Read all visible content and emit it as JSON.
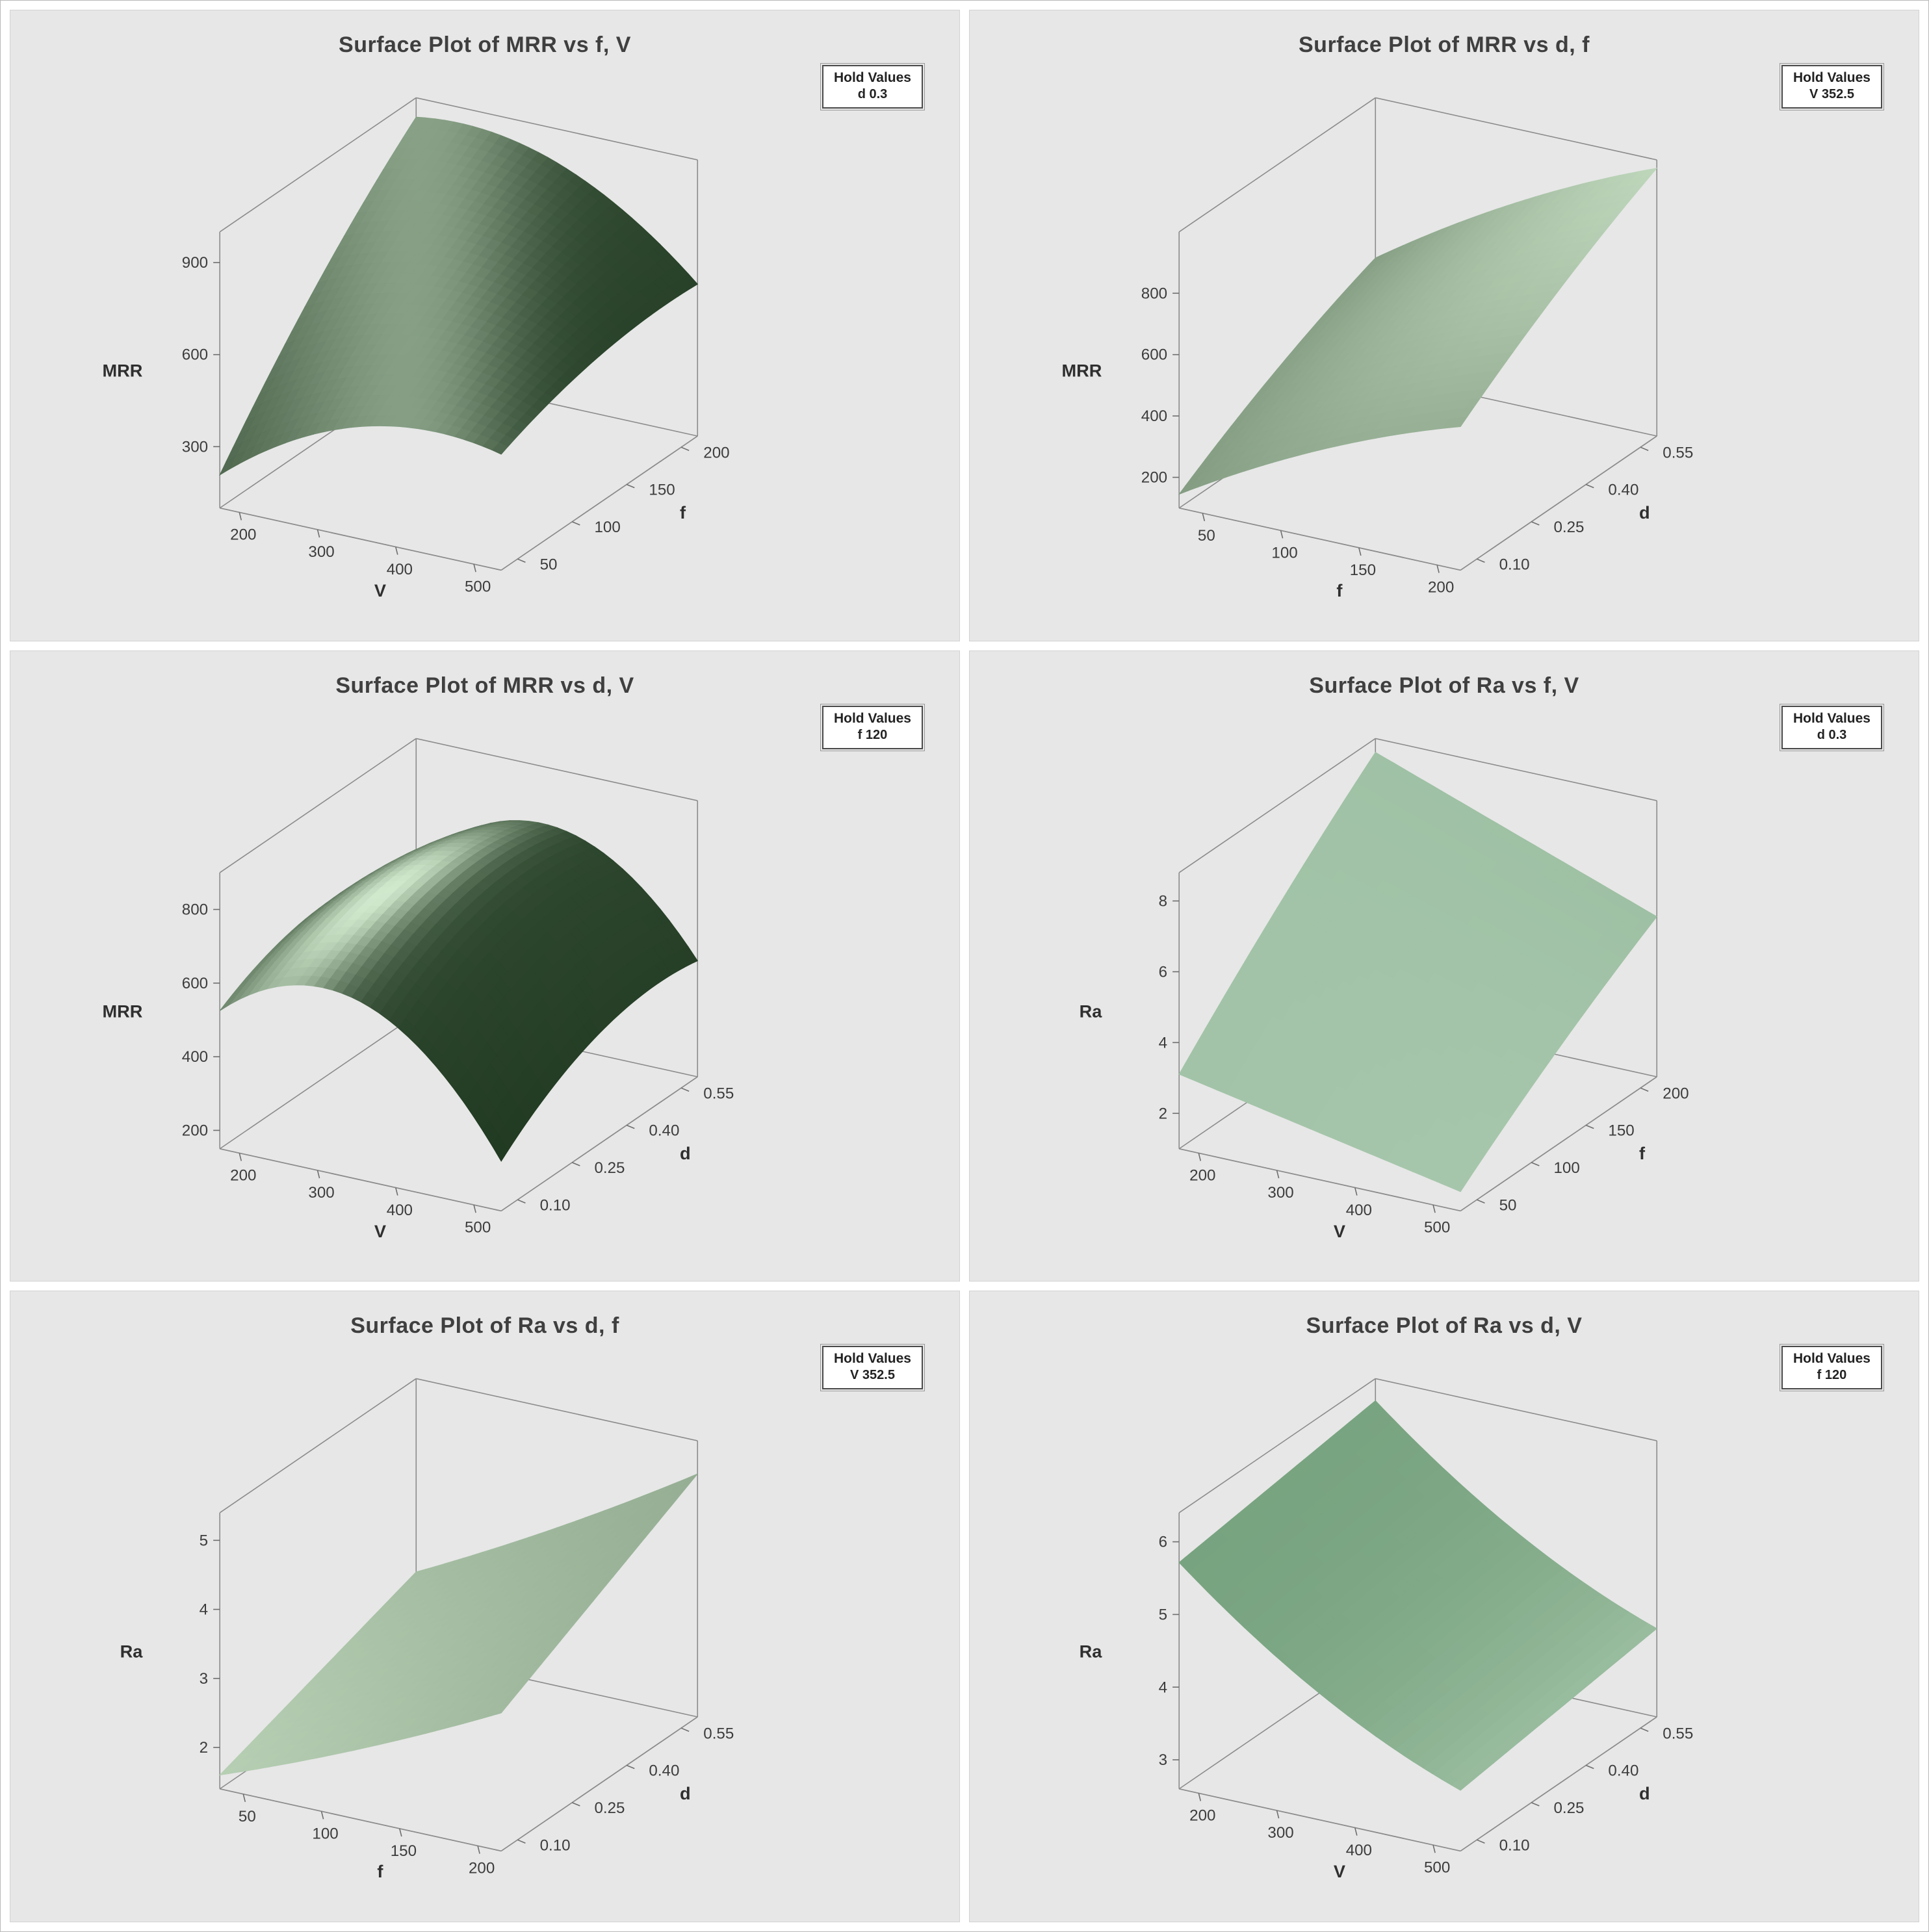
{
  "figure": {
    "background": "#ffffff",
    "panel_background": "#e7e7e7"
  },
  "palettes": {
    "dark": {
      "lo": "#112a12",
      "hi": "#d9f2d6"
    },
    "light": {
      "lo": "#2e6b3a",
      "hi": "#e9f9ea"
    }
  },
  "chart_data": [
    {
      "type": "surface",
      "title": "Surface Plot of MRR vs f, V",
      "hold_label": "Hold Values",
      "hold_value": "d 0.3",
      "x": {
        "label": "V",
        "ticks": [
          200,
          300,
          400,
          500
        ],
        "tick_labels": [
          "200",
          "300",
          "400",
          "500"
        ],
        "range": [
          175,
          535
        ]
      },
      "y": {
        "label": "f",
        "ticks": [
          50,
          100,
          150,
          200
        ],
        "tick_labels": [
          "50",
          "100",
          "150",
          "200"
        ],
        "range": [
          35,
          215
        ]
      },
      "z": {
        "label": "MRR",
        "ticks": [
          300,
          600,
          900
        ],
        "tick_labels": [
          "300",
          "600",
          "900"
        ],
        "range": [
          100,
          1000
        ]
      },
      "palette": "dark",
      "surface_coeffs": {
        "a": 0.12,
        "b": 0.85,
        "c": 1.0,
        "d": -0.55,
        "e": -0.19,
        "f": -0.68
      }
    },
    {
      "type": "surface",
      "title": "Surface Plot of MRR vs d, f",
      "hold_label": "Hold Values",
      "hold_value": "V 352.5",
      "x": {
        "label": "f",
        "ticks": [
          50,
          100,
          150,
          200
        ],
        "tick_labels": [
          "50",
          "100",
          "150",
          "200"
        ],
        "range": [
          35,
          215
        ]
      },
      "y": {
        "label": "d",
        "ticks": [
          0.1,
          0.25,
          0.4,
          0.55
        ],
        "tick_labels": [
          "0.10",
          "0.25",
          "0.40",
          "0.55"
        ],
        "range": [
          0.055,
          0.595
        ]
      },
      "z": {
        "label": "MRR",
        "ticks": [
          200,
          400,
          600,
          800
        ],
        "tick_labels": [
          "200",
          "400",
          "600",
          "800"
        ],
        "range": [
          100,
          1000
        ]
      },
      "palette": "dark",
      "surface_coeffs": {
        "a": 0.05,
        "b": 0.62,
        "c": 0.47,
        "d": -0.15,
        "e": -0.1,
        "f": 0.08
      }
    },
    {
      "type": "surface",
      "title": "Surface Plot of MRR vs d, V",
      "hold_label": "Hold Values",
      "hold_value": "f 120",
      "x": {
        "label": "V",
        "ticks": [
          200,
          300,
          400,
          500
        ],
        "tick_labels": [
          "200",
          "300",
          "400",
          "500"
        ],
        "range": [
          175,
          535
        ]
      },
      "y": {
        "label": "d",
        "ticks": [
          0.1,
          0.25,
          0.4,
          0.55
        ],
        "tick_labels": [
          "0.10",
          "0.25",
          "0.40",
          "0.55"
        ],
        "range": [
          0.055,
          0.595
        ]
      },
      "z": {
        "label": "MRR",
        "ticks": [
          200,
          400,
          600,
          800
        ],
        "tick_labels": [
          "200",
          "400",
          "600",
          "800"
        ],
        "range": [
          150,
          900
        ]
      },
      "palette": "dark",
      "surface_coeffs": {
        "a": 0.5,
        "b": 0.9,
        "c": 0.45,
        "d": -1.22,
        "e": -0.4,
        "f": 0.19
      }
    },
    {
      "type": "surface",
      "title": "Surface Plot of Ra vs f, V",
      "hold_label": "Hold Values",
      "hold_value": "d 0.3",
      "x": {
        "label": "V",
        "ticks": [
          200,
          300,
          400,
          500
        ],
        "tick_labels": [
          "200",
          "300",
          "400",
          "500"
        ],
        "range": [
          175,
          535
        ]
      },
      "y": {
        "label": "f",
        "ticks": [
          50,
          100,
          150,
          200
        ],
        "tick_labels": [
          "50",
          "100",
          "150",
          "200"
        ],
        "range": [
          35,
          215
        ]
      },
      "z": {
        "label": "Ra",
        "ticks": [
          2,
          4,
          6,
          8
        ],
        "tick_labels": [
          "2",
          "4",
          "6",
          "8"
        ],
        "range": [
          1,
          8.8
        ]
      },
      "palette": "light",
      "surface_coeffs": {
        "a": 0.27,
        "b": -0.2,
        "c": 0.76,
        "d": 0.0,
        "e": -0.08,
        "f": -0.17
      }
    },
    {
      "type": "surface",
      "title": "Surface Plot of Ra vs d, f",
      "hold_label": "Hold Values",
      "hold_value": "V 352.5",
      "x": {
        "label": "f",
        "ticks": [
          50,
          100,
          150,
          200
        ],
        "tick_labels": [
          "50",
          "100",
          "150",
          "200"
        ],
        "range": [
          35,
          215
        ]
      },
      "y": {
        "label": "d",
        "ticks": [
          0.1,
          0.25,
          0.4,
          0.55
        ],
        "tick_labels": [
          "0.10",
          "0.25",
          "0.40",
          "0.55"
        ],
        "range": [
          0.055,
          0.595
        ]
      },
      "z": {
        "label": "Ra",
        "ticks": [
          2,
          3,
          4,
          5
        ],
        "tick_labels": [
          "2",
          "3",
          "4",
          "5"
        ],
        "range": [
          1.4,
          5.4
        ]
      },
      "palette": "dark",
      "surface_coeffs": {
        "a": 0.05,
        "b": 0.38,
        "c": 0.25,
        "d": 0.07,
        "e": 0.0,
        "f": 0.13
      }
    },
    {
      "type": "surface",
      "title": "Surface Plot of Ra vs d, V",
      "hold_label": "Hold Values",
      "hold_value": "f 120",
      "x": {
        "label": "V",
        "ticks": [
          200,
          300,
          400,
          500
        ],
        "tick_labels": [
          "200",
          "300",
          "400",
          "500"
        ],
        "range": [
          175,
          535
        ]
      },
      "y": {
        "label": "d",
        "ticks": [
          0.1,
          0.25,
          0.4,
          0.55
        ],
        "tick_labels": [
          "0.10",
          "0.25",
          "0.40",
          "0.55"
        ],
        "range": [
          0.055,
          0.595
        ]
      },
      "z": {
        "label": "Ra",
        "ticks": [
          3,
          4,
          5,
          6
        ],
        "tick_labels": [
          "3",
          "4",
          "5",
          "6"
        ],
        "range": [
          2.6,
          6.4
        ]
      },
      "palette": "light",
      "surface_coeffs": {
        "a": 0.82,
        "b": -0.85,
        "c": 0.1,
        "d": 0.25,
        "e": 0.0,
        "f": 0.0
      }
    }
  ]
}
